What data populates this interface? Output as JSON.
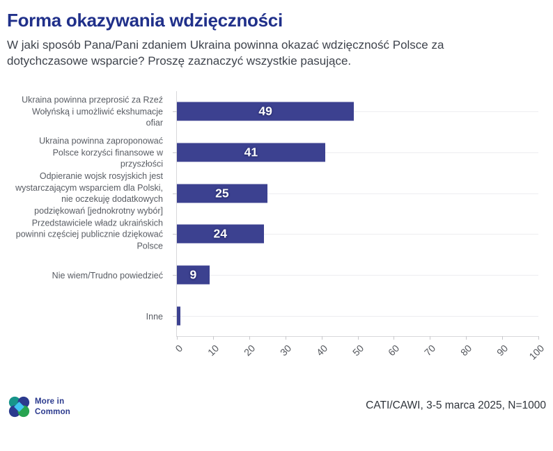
{
  "page": {
    "title": "Forma okazywania wdzięczności",
    "subtitle": "W jaki sposób Pana/Pani zdaniem Ukraina powinna okazać wdzięczność Polsce za dotychczasowe wsparcie? Proszę zaznaczyć wszystkie pasujące."
  },
  "footer": {
    "logo_line1": "More in",
    "logo_line2": "Common",
    "source": "CATI/CAWI, 3-5 marca 2025, N=1000"
  },
  "colors": {
    "title_navy": "#20308a",
    "bar_fill": "#3c4190",
    "gridline": "#ededf0",
    "axis_line": "#d8d8db",
    "logo_teal": "#17948a",
    "logo_indigo": "#2b3a8e",
    "logo_green": "#27a350",
    "logo_lightblue": "#41c4f1"
  },
  "chart_data": {
    "type": "bar",
    "orientation": "horizontal",
    "title": "Forma okazywania wdzięczności",
    "xlabel": "",
    "ylabel": "",
    "xlim": [
      0,
      100
    ],
    "x_ticks": [
      0,
      10,
      20,
      30,
      40,
      50,
      60,
      70,
      80,
      90,
      100
    ],
    "grid": true,
    "legend": false,
    "categories": [
      "Ukraina powinna przeprosić za Rzeź Wołyńską i umożliwić ekshumacje ofiar",
      "Ukraina powinna zaproponować Polsce korzyści finansowe w przyszłości",
      "Odpieranie wojsk rosyjskich jest wystarczającym wsparciem dla Polski, nie oczekuję dodatkowych podziękowań [jednokrotny wybór]",
      "Przedstawiciele władz ukraińskich powinni częściej publicznie dziękować Polsce",
      "Nie wiem/Trudno powiedzieć",
      "Inne"
    ],
    "category_lines": [
      [
        "Ukraina powinna przeprosić za Rzeź",
        "Wołyńską i umożliwić ekshumacje",
        "ofiar"
      ],
      [
        "Ukraina powinna zaproponować",
        "Polsce korzyści finansowe w",
        "przyszłości"
      ],
      [
        "Odpieranie wojsk rosyjskich jest",
        "wystarczającym wsparciem dla Polski,",
        "nie oczekuję dodatkowych",
        "podziękowań [jednokrotny wybór]"
      ],
      [
        "Przedstawiciele władz ukraińskich",
        "powinni częściej publicznie dziękować",
        "Polsce"
      ],
      [
        "Nie wiem/Trudno powiedzieć"
      ],
      [
        "Inne"
      ]
    ],
    "values": [
      49,
      41,
      25,
      24,
      9,
      1
    ],
    "bar_labels": [
      "49",
      "41",
      "25",
      "24",
      "9",
      ""
    ]
  }
}
